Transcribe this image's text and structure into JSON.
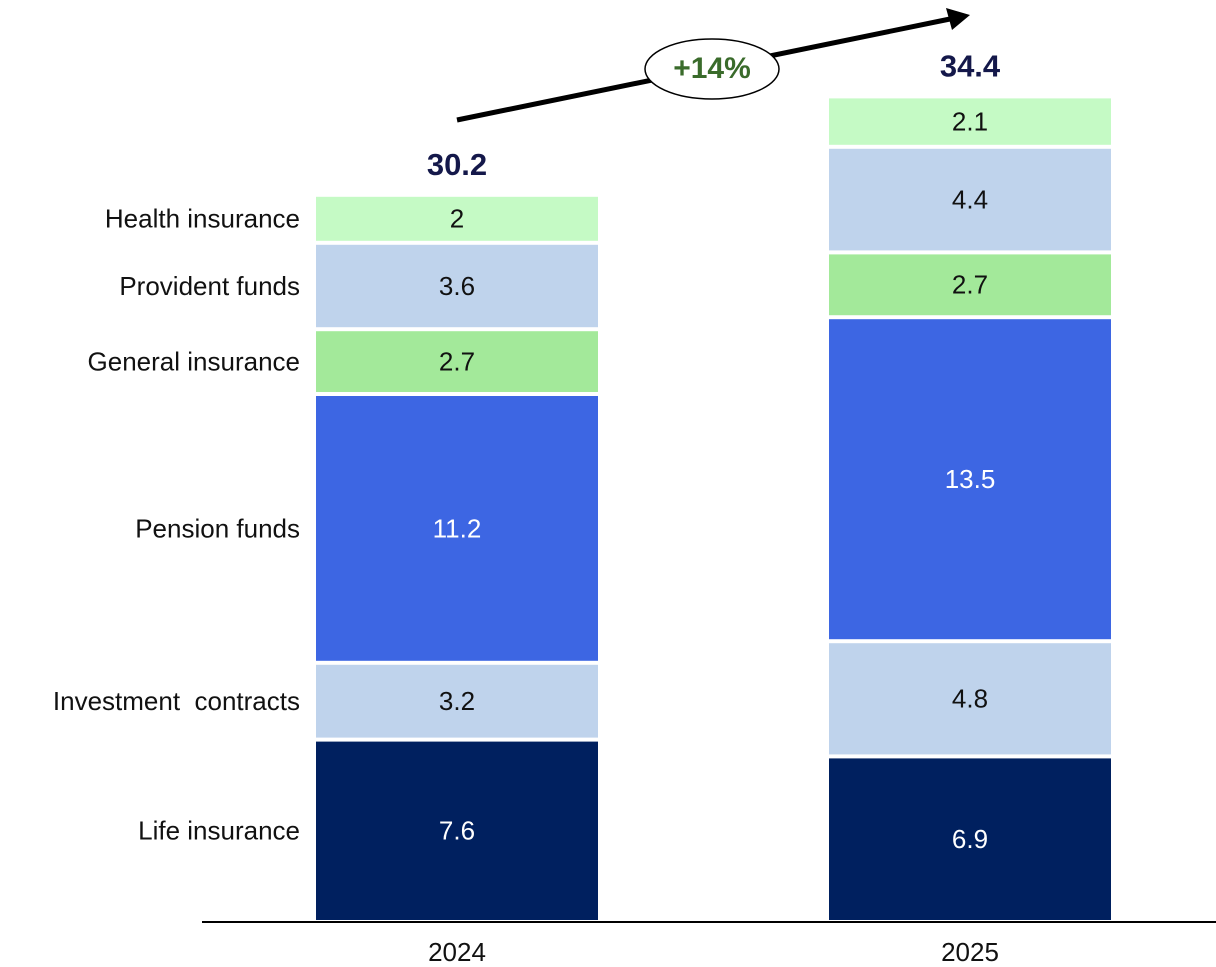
{
  "chart_data": {
    "type": "stacked_bar",
    "categories": [
      "2024",
      "2025"
    ],
    "series": [
      {
        "name": "Life insurance",
        "color": "#00205f",
        "values": [
          7.6,
          6.9
        ]
      },
      {
        "name": "Investment  contracts",
        "color": "#bfd3ec",
        "values": [
          3.2,
          4.8
        ]
      },
      {
        "name": "Pension funds",
        "color": "#3d66e3",
        "values": [
          11.2,
          13.5
        ]
      },
      {
        "name": "General insurance",
        "color": "#a3e99a",
        "values": [
          2.7,
          2.7
        ]
      },
      {
        "name": "Provident funds",
        "color": "#bfd3ec",
        "values": [
          3.6,
          4.4
        ]
      },
      {
        "name": "Health insurance",
        "color": "#c5fac5",
        "values": [
          2.0,
          2.1
        ]
      }
    ],
    "totals": [
      30.2,
      34.4
    ],
    "annotation": "+14%"
  }
}
